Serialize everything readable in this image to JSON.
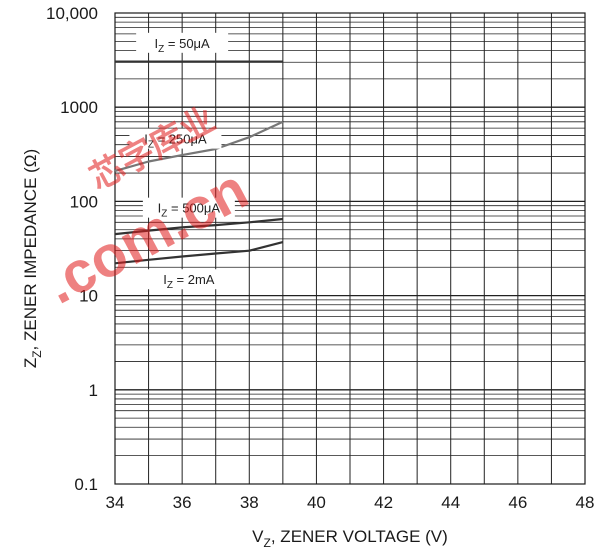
{
  "chart_data": {
    "type": "line",
    "xlabel": "V",
    "xlabel_sub": "Z",
    "xlabel_rest": ", ZENER VOLTAGE (V)",
    "ylabel": "Z",
    "ylabel_sub": "Z",
    "ylabel_rest": ", ZENER IMPEDANCE (Ω)",
    "xlim": [
      34,
      48
    ],
    "ylim": [
      0.1,
      10000
    ],
    "yscale": "log",
    "grid": true,
    "x_ticks": [
      34,
      36,
      38,
      40,
      42,
      44,
      46,
      48
    ],
    "x_tick_labels": [
      "34",
      "36",
      "38",
      "40",
      "42",
      "44",
      "46",
      "48"
    ],
    "y_ticks": [
      0.1,
      1,
      10,
      100,
      1000,
      10000
    ],
    "y_tick_labels": [
      "0.1",
      "1",
      "10",
      "100",
      "1000",
      "10,000"
    ],
    "series": [
      {
        "name": "IZ = 50μA",
        "label_main": "I",
        "label_sub": "Z",
        "label_rest": " = 50μA",
        "color": "#333333",
        "x": [
          34,
          35,
          36,
          37,
          38,
          39
        ],
        "y": [
          3050,
          3050,
          3050,
          3050,
          3050,
          3050
        ]
      },
      {
        "name": "IZ = 250μA",
        "label_main": "I",
        "label_sub": "Z",
        "label_rest": " = 250μA",
        "color": "#777777",
        "x": [
          34,
          35,
          36,
          37,
          38,
          39
        ],
        "y": [
          210,
          265,
          310,
          360,
          480,
          700
        ]
      },
      {
        "name": "IZ = 500μA",
        "label_main": "I",
        "label_sub": "Z",
        "label_rest": " = 500μA",
        "color": "#333333",
        "x": [
          34,
          35,
          36,
          37,
          38,
          39
        ],
        "y": [
          45,
          49,
          53,
          56,
          60,
          65
        ]
      },
      {
        "name": "IZ = 2mA",
        "label_main": "I",
        "label_sub": "Z",
        "label_rest": " = 2mA",
        "color": "#333333",
        "x": [
          34,
          35,
          36,
          37,
          38,
          39
        ],
        "y": [
          22,
          24,
          26,
          28,
          30,
          37
        ]
      }
    ]
  },
  "watermark": {
    "text": ".com.cn",
    "glyphs": "芯字库业"
  }
}
